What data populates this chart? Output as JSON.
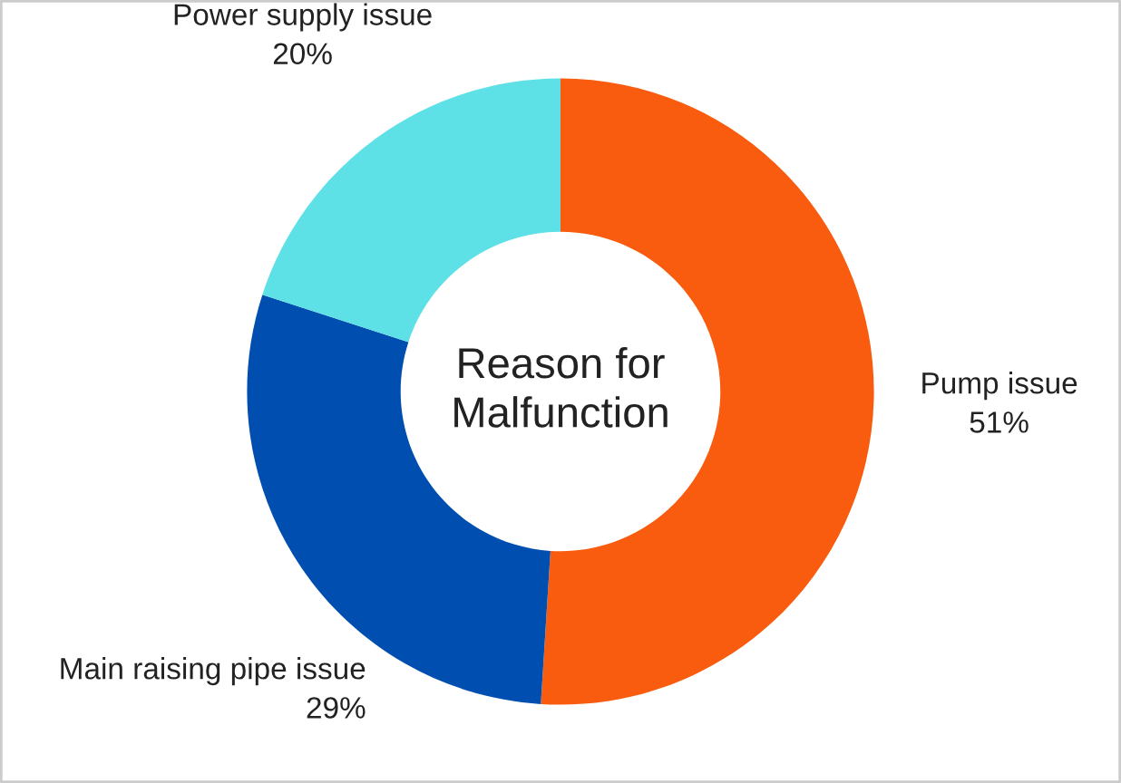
{
  "chart_data": {
    "type": "donut",
    "title": "Reason for\nMalfunction",
    "categories": [
      "Pump issue",
      "Main raising pipe issue",
      "Power supply issue"
    ],
    "values": [
      51,
      29,
      20
    ],
    "colors": [
      "#f95c0f",
      "#004fb0",
      "#5de1e6"
    ],
    "value_labels": [
      "51%",
      "29%",
      "20%"
    ]
  }
}
